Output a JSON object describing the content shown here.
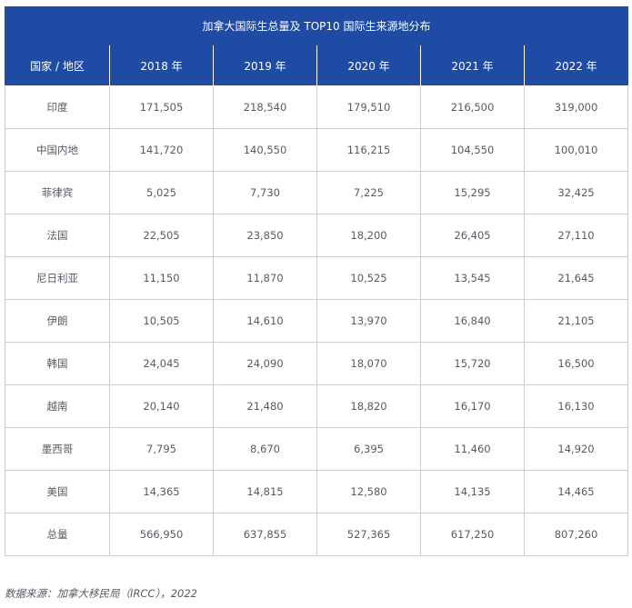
{
  "table": {
    "title": "加拿大国际生总量及 TOP10 国际生来源地分布",
    "headers": [
      "国家 / 地区",
      "2018 年",
      "2019 年",
      "2020 年",
      "2021 年",
      "2022 年"
    ],
    "rows": [
      [
        "印度",
        "171,505",
        "218,540",
        "179,510",
        "216,500",
        "319,000"
      ],
      [
        "中国内地",
        "141,720",
        "140,550",
        "116,215",
        "104,550",
        "100,010"
      ],
      [
        "菲律宾",
        "5,025",
        "7,730",
        "7,225",
        "15,295",
        "32,425"
      ],
      [
        "法国",
        "22,505",
        "23,850",
        "18,200",
        "26,405",
        "27,110"
      ],
      [
        "尼日利亚",
        "11,150",
        "11,870",
        "10,525",
        "13,545",
        "21,645"
      ],
      [
        "伊朗",
        "10,505",
        "14,610",
        "13,970",
        "16,840",
        "21,105"
      ],
      [
        "韩国",
        "24,045",
        "24,090",
        "18,070",
        "15,720",
        "16,500"
      ],
      [
        "越南",
        "20,140",
        "21,480",
        "18,820",
        "16,170",
        "16,130"
      ],
      [
        "墨西哥",
        "7,795",
        "8,670",
        "6,395",
        "11,460",
        "14,920"
      ],
      [
        "美国",
        "14,365",
        "14,815",
        "12,580",
        "14,135",
        "14,465"
      ],
      [
        "总量",
        "566,950",
        "637,855",
        "527,365",
        "617,250",
        "807,260"
      ]
    ]
  },
  "source_note": "数据来源：加拿大移民局（IRCC），2022",
  "colors": {
    "header_bg": "#1f4ba5",
    "text": "#555a66",
    "border": "#c9cdd6"
  }
}
